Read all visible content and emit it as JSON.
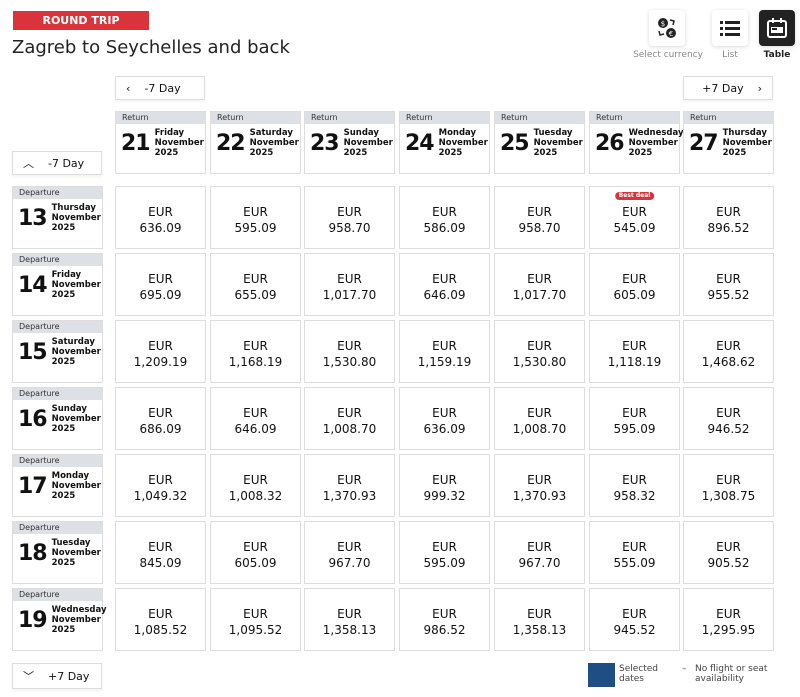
{
  "trip_type": "ROUND TRIP",
  "title": "Zagreb to Seychelles and back",
  "toolbar": {
    "currency": "Select currency",
    "list": "List",
    "table": "Table"
  },
  "nav": {
    "prev_return": "-7 Day",
    "next_return": "+7 Day",
    "prev_departure": "-7 Day",
    "next_departure": "+7 Day"
  },
  "return_label": "Return",
  "departure_label": "Departure",
  "currency": "EUR",
  "best_deal_label": "Best deal",
  "returns": [
    {
      "day": "21",
      "weekday": "Friday",
      "month": "November",
      "year": "2025"
    },
    {
      "day": "22",
      "weekday": "Saturday",
      "month": "November",
      "year": "2025"
    },
    {
      "day": "23",
      "weekday": "Sunday",
      "month": "November",
      "year": "2025"
    },
    {
      "day": "24",
      "weekday": "Monday",
      "month": "November",
      "year": "2025"
    },
    {
      "day": "25",
      "weekday": "Tuesday",
      "month": "November",
      "year": "2025"
    },
    {
      "day": "26",
      "weekday": "Wednesday",
      "month": "November",
      "year": "2025"
    },
    {
      "day": "27",
      "weekday": "Thursday",
      "month": "November",
      "year": "2025"
    }
  ],
  "departures": [
    {
      "day": "13",
      "weekday": "Thursday",
      "month": "November",
      "year": "2025",
      "prices": [
        "636.09",
        "595.09",
        "958.70",
        "586.09",
        "958.70",
        "545.09",
        "896.52"
      ]
    },
    {
      "day": "14",
      "weekday": "Friday",
      "month": "November",
      "year": "2025",
      "prices": [
        "695.09",
        "655.09",
        "1,017.70",
        "646.09",
        "1,017.70",
        "605.09",
        "955.52"
      ]
    },
    {
      "day": "15",
      "weekday": "Saturday",
      "month": "November",
      "year": "2025",
      "prices": [
        "1,209.19",
        "1,168.19",
        "1,530.80",
        "1,159.19",
        "1,530.80",
        "1,118.19",
        "1,468.62"
      ]
    },
    {
      "day": "16",
      "weekday": "Sunday",
      "month": "November",
      "year": "2025",
      "prices": [
        "686.09",
        "646.09",
        "1,008.70",
        "636.09",
        "1,008.70",
        "595.09",
        "946.52"
      ]
    },
    {
      "day": "17",
      "weekday": "Monday",
      "month": "November",
      "year": "2025",
      "prices": [
        "1,049.32",
        "1,008.32",
        "1,370.93",
        "999.32",
        "1,370.93",
        "958.32",
        "1,308.75"
      ]
    },
    {
      "day": "18",
      "weekday": "Tuesday",
      "month": "November",
      "year": "2025",
      "prices": [
        "845.09",
        "605.09",
        "967.70",
        "595.09",
        "967.70",
        "555.09",
        "905.52"
      ]
    },
    {
      "day": "19",
      "weekday": "Wednesday",
      "month": "November",
      "year": "2025",
      "prices": [
        "1,085.52",
        "1,095.52",
        "1,358.13",
        "986.52",
        "1,358.13",
        "945.52",
        "1,295.95"
      ]
    }
  ],
  "best_deal": {
    "row": 0,
    "col": 5
  },
  "legend": {
    "selected": "Selected dates",
    "none_symbol": "–",
    "none": "No flight or seat availability"
  },
  "colors": {
    "accent": "#d9343b",
    "selected": "#1f4e85"
  }
}
